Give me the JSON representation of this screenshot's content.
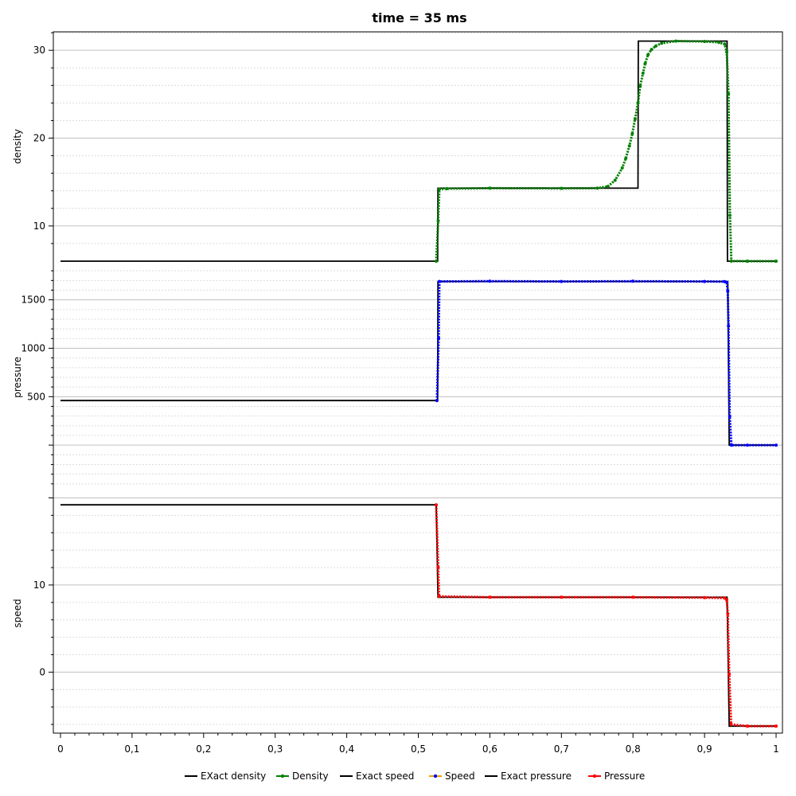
{
  "chart_data": {
    "type": "line",
    "title": "time = 35 ms",
    "xlim": [
      0,
      1
    ],
    "x_ticks": [
      "0",
      "0,1",
      "0,2",
      "0,3",
      "0,4",
      "0,5",
      "0,6",
      "0,7",
      "0,8",
      "0,9",
      "1"
    ],
    "x_tick_values": [
      0,
      0.1,
      0.2,
      0.3,
      0.4,
      0.5,
      0.6,
      0.7,
      0.8,
      0.9,
      1
    ],
    "grid": true,
    "legend_position": "bottom",
    "panels": [
      {
        "ylabel": "density",
        "ylim": [
          6,
          32.1
        ],
        "y_ticks": [
          "10",
          "20",
          "30"
        ],
        "y_tick_values": [
          10,
          20,
          30
        ],
        "series": [
          {
            "name": "EXact density",
            "color": "#000000",
            "style": "line",
            "points": [
              [
                0,
                5.99
              ],
              [
                0.527,
                5.99
              ],
              [
                0.5275,
                14.3
              ],
              [
                0.807,
                14.3
              ],
              [
                0.8075,
                31.05
              ],
              [
                0.9315,
                31.05
              ],
              [
                0.932,
                5.99
              ],
              [
                1,
                5.99
              ]
            ]
          },
          {
            "name": "Density",
            "color": "#008000",
            "style": "markers",
            "points": [
              [
                0.525,
                5.99
              ],
              [
                0.5278,
                10.6
              ],
              [
                0.5295,
                14.2
              ],
              [
                0.54,
                14.25
              ],
              [
                0.6,
                14.3
              ],
              [
                0.7,
                14.28
              ],
              [
                0.75,
                14.3
              ],
              [
                0.765,
                14.5
              ],
              [
                0.775,
                15.2
              ],
              [
                0.785,
                16.6
              ],
              [
                0.79,
                17.7
              ],
              [
                0.795,
                19.1
              ],
              [
                0.799,
                20.5
              ],
              [
                0.803,
                22.2
              ],
              [
                0.807,
                24.0
              ],
              [
                0.81,
                25.9
              ],
              [
                0.814,
                27.4
              ],
              [
                0.817,
                28.5
              ],
              [
                0.821,
                29.5
              ],
              [
                0.826,
                30.1
              ],
              [
                0.832,
                30.5
              ],
              [
                0.84,
                30.8
              ],
              [
                0.86,
                31.05
              ],
              [
                0.9,
                31.0
              ],
              [
                0.92,
                30.9
              ],
              [
                0.928,
                30.7
              ],
              [
                0.931,
                29.8
              ],
              [
                0.9335,
                25.0
              ],
              [
                0.9355,
                11.2
              ],
              [
                0.9375,
                6.0
              ],
              [
                0.96,
                5.99
              ],
              [
                1.0,
                5.99
              ]
            ]
          }
        ]
      },
      {
        "ylabel": "pressure",
        "ylim": [
          -500,
          1900
        ],
        "y_ticks": [
          "500",
          "1000",
          "1500"
        ],
        "y_tick_values": [
          500,
          1000,
          1500
        ],
        "series": [
          {
            "name": "Exact pressure",
            "color": "#000000",
            "style": "line",
            "points": [
              [
                0,
                460
              ],
              [
                0.527,
                460
              ],
              [
                0.5275,
                1690
              ],
              [
                0.9325,
                1690
              ],
              [
                0.9345,
                0
              ],
              [
                1,
                0
              ]
            ]
          },
          {
            "name": "Speed",
            "color": "#0000ff",
            "style": "markers",
            "points": [
              [
                0.526,
                460
              ],
              [
                0.5285,
                1100
              ],
              [
                0.5295,
                1690
              ],
              [
                0.6,
                1693
              ],
              [
                0.7,
                1690
              ],
              [
                0.8,
                1692
              ],
              [
                0.9,
                1690
              ],
              [
                0.928,
                1688
              ],
              [
                0.931,
                1680
              ],
              [
                0.9325,
                1590
              ],
              [
                0.9335,
                1230
              ],
              [
                0.9352,
                300
              ],
              [
                0.9375,
                0
              ],
              [
                0.96,
                0
              ],
              [
                1.0,
                0
              ]
            ]
          }
        ]
      },
      {
        "ylabel": "speed",
        "ylim": [
          -7,
          20.5
        ],
        "y_ticks": [
          "0",
          "10"
        ],
        "y_tick_values": [
          0,
          10
        ],
        "series": [
          {
            "name": "Exact speed",
            "color": "#000000",
            "style": "line",
            "points": [
              [
                0,
                19.2
              ],
              [
                0.525,
                19.2
              ],
              [
                0.5275,
                8.6
              ],
              [
                0.9315,
                8.6
              ],
              [
                0.9345,
                -6.2
              ],
              [
                1,
                -6.2
              ]
            ]
          },
          {
            "name": "Pressure",
            "color": "#ff0000",
            "style": "markers",
            "points": [
              [
                0.525,
                19.2
              ],
              [
                0.5278,
                12.0
              ],
              [
                0.529,
                8.7
              ],
              [
                0.6,
                8.6
              ],
              [
                0.7,
                8.6
              ],
              [
                0.8,
                8.6
              ],
              [
                0.9,
                8.55
              ],
              [
                0.928,
                8.5
              ],
              [
                0.931,
                8.3
              ],
              [
                0.9325,
                6.7
              ],
              [
                0.9345,
                -0.2
              ],
              [
                0.9372,
                -6.0
              ],
              [
                0.96,
                -6.2
              ],
              [
                1.0,
                -6.2
              ]
            ]
          }
        ]
      }
    ],
    "legend": [
      {
        "label": "EXact density",
        "color": "#000000",
        "marker": false
      },
      {
        "label": "Density",
        "color": "#008000",
        "marker": true
      },
      {
        "label": "Exact speed",
        "color": "#000000",
        "marker": false
      },
      {
        "label": "Speed",
        "color": "#f0a000",
        "marker": true,
        "marker_color": "#0000ff"
      },
      {
        "label": "Exact pressure",
        "color": "#000000",
        "marker": false
      },
      {
        "label": "Pressure",
        "color": "#ff0000",
        "marker": true
      }
    ]
  }
}
